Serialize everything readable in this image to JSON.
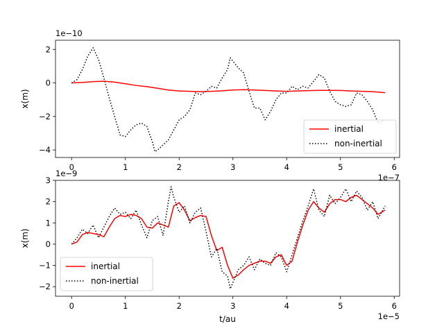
{
  "chart_data": [
    {
      "type": "line",
      "xlabel": "",
      "ylabel": "x(m)",
      "x_offset": "1e−7",
      "y_offset": "1e−10",
      "xlim": [
        -0.3,
        6.1
      ],
      "ylim": [
        -4.45,
        2.55
      ],
      "xticks": [
        0,
        1,
        2,
        3,
        4,
        5,
        6
      ],
      "xtick_labels": [
        "0",
        "1",
        "2",
        "3",
        "4",
        "5",
        "6"
      ],
      "yticks": [
        -4,
        -2,
        0,
        2
      ],
      "ytick_labels": [
        "−4",
        "−2",
        "0",
        "2"
      ],
      "grid": false,
      "legend": "lower-right",
      "series": [
        {
          "name": "inertial",
          "color": "#ff0000",
          "style": "solid",
          "x": [
            0,
            0.2,
            0.4,
            0.6,
            0.8,
            1.0,
            1.2,
            1.4,
            1.6,
            1.8,
            2.0,
            2.2,
            2.4,
            2.6,
            2.8,
            3.0,
            3.2,
            3.4,
            3.6,
            3.8,
            4.0,
            4.2,
            4.4,
            4.6,
            4.8,
            5.0,
            5.2,
            5.4,
            5.6,
            5.83
          ],
          "y": [
            0.0,
            0.03,
            0.08,
            0.1,
            0.05,
            -0.05,
            -0.15,
            -0.22,
            -0.32,
            -0.42,
            -0.48,
            -0.5,
            -0.52,
            -0.5,
            -0.47,
            -0.42,
            -0.4,
            -0.42,
            -0.45,
            -0.48,
            -0.5,
            -0.48,
            -0.46,
            -0.44,
            -0.44,
            -0.45,
            -0.48,
            -0.5,
            -0.52,
            -0.58
          ]
        },
        {
          "name": "non-inertial",
          "color": "#000000",
          "style": "dotted",
          "x": [
            0,
            0.1,
            0.2,
            0.3,
            0.4,
            0.5,
            0.6,
            0.7,
            0.8,
            0.9,
            1.0,
            1.1,
            1.2,
            1.3,
            1.4,
            1.5,
            1.55,
            1.6,
            1.7,
            1.8,
            1.9,
            2.0,
            2.1,
            2.2,
            2.3,
            2.4,
            2.5,
            2.6,
            2.7,
            2.8,
            2.9,
            2.95,
            3.0,
            3.1,
            3.2,
            3.3,
            3.4,
            3.5,
            3.6,
            3.7,
            3.8,
            3.9,
            4.0,
            4.1,
            4.2,
            4.3,
            4.4,
            4.5,
            4.6,
            4.7,
            4.8,
            4.9,
            5.0,
            5.1,
            5.2,
            5.3,
            5.4,
            5.5,
            5.6,
            5.7,
            5.83
          ],
          "y": [
            0.0,
            0.2,
            0.8,
            1.6,
            2.1,
            1.4,
            0.3,
            -0.9,
            -2.0,
            -3.1,
            -3.2,
            -2.8,
            -2.5,
            -2.4,
            -2.6,
            -3.5,
            -4.1,
            -4.0,
            -3.7,
            -3.4,
            -2.8,
            -2.2,
            -2.0,
            -1.6,
            -0.6,
            -0.7,
            -0.5,
            -0.2,
            -0.3,
            0.3,
            0.8,
            1.5,
            1.3,
            0.9,
            0.6,
            -0.5,
            -1.5,
            -1.5,
            -2.2,
            -1.7,
            -1.0,
            -0.6,
            -0.6,
            -0.2,
            -0.4,
            -0.2,
            -0.3,
            0.1,
            0.5,
            0.3,
            -0.5,
            -1.1,
            -1.3,
            -1.4,
            -1.3,
            -0.6,
            -0.7,
            -1.1,
            -1.6,
            -2.4,
            -2.2
          ]
        }
      ]
    },
    {
      "type": "line",
      "xlabel": "t/au",
      "ylabel": "x(m)",
      "x_offset": "1e−5",
      "y_offset": "1e−9",
      "xlim": [
        -0.3,
        6.1
      ],
      "ylim": [
        -2.45,
        3.0
      ],
      "xticks": [
        0,
        1,
        2,
        3,
        4,
        5,
        6
      ],
      "xtick_labels": [
        "0",
        "1",
        "2",
        "3",
        "4",
        "5",
        "6"
      ],
      "yticks": [
        -2,
        -1,
        0,
        1,
        2,
        3
      ],
      "ytick_labels": [
        "−2",
        "−1",
        "0",
        "1",
        "2",
        "3"
      ],
      "grid": false,
      "legend": "lower-left",
      "series": [
        {
          "name": "inertial",
          "color": "#ff0000",
          "style": "solid",
          "x": [
            0,
            0.1,
            0.2,
            0.3,
            0.4,
            0.5,
            0.6,
            0.7,
            0.8,
            0.9,
            1.0,
            1.1,
            1.2,
            1.3,
            1.4,
            1.5,
            1.6,
            1.7,
            1.8,
            1.9,
            2.0,
            2.1,
            2.2,
            2.3,
            2.4,
            2.5,
            2.6,
            2.7,
            2.8,
            2.9,
            3.0,
            3.1,
            3.2,
            3.3,
            3.4,
            3.5,
            3.6,
            3.7,
            3.8,
            3.9,
            4.0,
            4.1,
            4.2,
            4.3,
            4.4,
            4.5,
            4.6,
            4.7,
            4.8,
            4.9,
            5.0,
            5.1,
            5.2,
            5.3,
            5.4,
            5.5,
            5.6,
            5.7,
            5.83
          ],
          "y": [
            0.0,
            0.1,
            0.45,
            0.55,
            0.5,
            0.45,
            0.35,
            0.8,
            1.2,
            1.35,
            1.3,
            1.4,
            1.35,
            1.2,
            0.8,
            0.75,
            1.0,
            0.9,
            0.8,
            1.8,
            1.95,
            1.6,
            1.1,
            1.25,
            1.35,
            1.3,
            0.4,
            -0.3,
            -0.15,
            -1.0,
            -1.6,
            -1.45,
            -1.2,
            -1.0,
            -0.9,
            -0.8,
            -0.8,
            -0.9,
            -0.6,
            -0.5,
            -1.0,
            -0.8,
            0.1,
            0.9,
            1.6,
            2.0,
            1.7,
            1.5,
            1.9,
            2.1,
            2.1,
            2.0,
            2.2,
            2.3,
            2.1,
            1.9,
            1.7,
            1.4,
            1.6
          ]
        },
        {
          "name": "non-inertial",
          "color": "#000000",
          "style": "dotted",
          "x": [
            0,
            0.1,
            0.2,
            0.3,
            0.4,
            0.5,
            0.6,
            0.7,
            0.8,
            0.9,
            1.0,
            1.1,
            1.2,
            1.3,
            1.4,
            1.5,
            1.6,
            1.7,
            1.8,
            1.85,
            1.9,
            2.0,
            2.1,
            2.2,
            2.3,
            2.4,
            2.5,
            2.6,
            2.7,
            2.8,
            2.9,
            2.95,
            3.0,
            3.1,
            3.2,
            3.3,
            3.4,
            3.5,
            3.6,
            3.7,
            3.8,
            3.9,
            4.0,
            4.1,
            4.2,
            4.3,
            4.4,
            4.5,
            4.6,
            4.7,
            4.8,
            4.9,
            5.0,
            5.1,
            5.2,
            5.3,
            5.4,
            5.5,
            5.6,
            5.7,
            5.83
          ],
          "y": [
            0.0,
            0.3,
            0.7,
            0.5,
            0.9,
            0.3,
            0.8,
            1.3,
            1.7,
            1.4,
            1.5,
            1.2,
            1.6,
            0.9,
            0.3,
            1.1,
            1.3,
            0.4,
            2.0,
            2.7,
            2.2,
            1.5,
            1.8,
            1.0,
            1.5,
            1.7,
            0.6,
            -0.6,
            -0.2,
            -1.3,
            -1.5,
            -2.1,
            -1.8,
            -1.2,
            -1.0,
            -0.6,
            -1.2,
            -0.7,
            -0.9,
            -1.0,
            -0.4,
            -0.6,
            -1.3,
            -0.5,
            0.3,
            1.1,
            1.8,
            2.6,
            1.6,
            1.3,
            2.3,
            1.9,
            2.2,
            2.6,
            2.0,
            2.5,
            2.2,
            1.6,
            2.0,
            1.2,
            1.8
          ]
        }
      ]
    }
  ]
}
